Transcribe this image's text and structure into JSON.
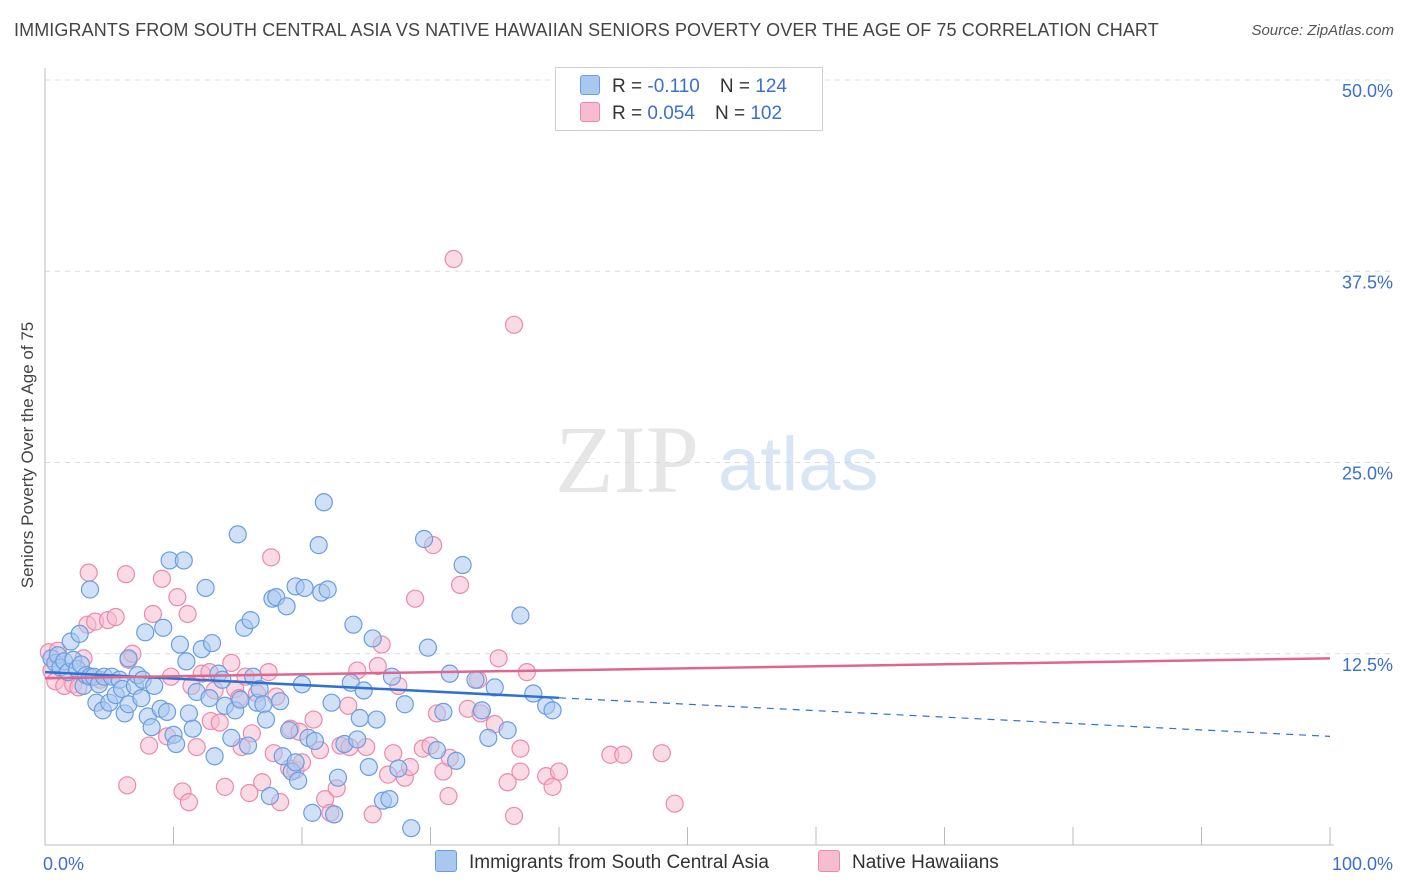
{
  "header": {
    "title": "IMMIGRANTS FROM SOUTH CENTRAL ASIA VS NATIVE HAWAIIAN SENIORS POVERTY OVER THE AGE OF 75 CORRELATION CHART",
    "source": "Source: ZipAtlas.com"
  },
  "watermark": {
    "zip": "ZIP",
    "atlas": "atlas"
  },
  "legend_top": {
    "rows": [
      {
        "r_label": "R =",
        "r_value": "-0.110",
        "n_label": "N =",
        "n_value": "124"
      },
      {
        "r_label": "R =",
        "r_value": "0.054",
        "n_label": "N =",
        "n_value": "102"
      }
    ]
  },
  "colors": {
    "blue_fill": "#a9c8f0",
    "blue_stroke": "#6a9de0",
    "blue_line": "#3070d0",
    "pink_fill": "#f6bcd0",
    "pink_stroke": "#eb8aab",
    "pink_line": "#e06590",
    "grid": "#dcdcdc",
    "axis_text": "#3a6fd0"
  },
  "chart_data": {
    "type": "scatter",
    "title": "IMMIGRANTS FROM SOUTH CENTRAL ASIA VS NATIVE HAWAIIAN SENIORS POVERTY OVER THE AGE OF 75 CORRELATION CHART",
    "xlabel": "",
    "ylabel": "Seniors Poverty Over the Age of 75",
    "xlim": [
      0,
      100
    ],
    "ylim": [
      0,
      50
    ],
    "x_tick_labels": [
      "0.0%",
      "100.0%"
    ],
    "y_ticks": [
      12.5,
      25.0,
      37.5,
      50.0
    ],
    "y_tick_labels": [
      "12.5%",
      "25.0%",
      "37.5%",
      "50.0%"
    ],
    "grid": true,
    "legend_position": "bottom",
    "series": [
      {
        "name": "Immigrants from South Central Asia",
        "r": -0.11,
        "n": 124,
        "trend": {
          "x0": 0,
          "y0": 11.3,
          "x1": 100,
          "y1": 7.1,
          "solid_until_x": 40
        },
        "points": [
          [
            0.5,
            12.2
          ],
          [
            0.8,
            11.9
          ],
          [
            1.0,
            12.4
          ],
          [
            1.2,
            11.6
          ],
          [
            1.5,
            12.0
          ],
          [
            1.8,
            11.3
          ],
          [
            2.0,
            13.3
          ],
          [
            2.2,
            12.1
          ],
          [
            2.5,
            11.5
          ],
          [
            2.8,
            11.8
          ],
          [
            3.0,
            10.4
          ],
          [
            3.2,
            11.1
          ],
          [
            2.7,
            13.8
          ],
          [
            3.5,
            11.0
          ],
          [
            3.5,
            16.7
          ],
          [
            3.8,
            11.0
          ],
          [
            4.0,
            9.3
          ],
          [
            4.2,
            10.5
          ],
          [
            4.5,
            8.8
          ],
          [
            4.6,
            11.0
          ],
          [
            5.0,
            9.3
          ],
          [
            5.2,
            11.0
          ],
          [
            5.5,
            9.8
          ],
          [
            5.8,
            10.8
          ],
          [
            6.0,
            10.2
          ],
          [
            6.2,
            8.6
          ],
          [
            6.5,
            9.2
          ],
          [
            6.5,
            12.2
          ],
          [
            7.0,
            10.4
          ],
          [
            7.2,
            11.1
          ],
          [
            7.5,
            9.6
          ],
          [
            7.6,
            10.8
          ],
          [
            7.8,
            13.9
          ],
          [
            8.0,
            8.4
          ],
          [
            8.3,
            7.7
          ],
          [
            8.5,
            10.4
          ],
          [
            9.0,
            8.9
          ],
          [
            9.2,
            14.2
          ],
          [
            9.5,
            8.7
          ],
          [
            9.7,
            18.6
          ],
          [
            10.0,
            7.2
          ],
          [
            10.2,
            6.6
          ],
          [
            10.5,
            13.1
          ],
          [
            10.8,
            18.6
          ],
          [
            11.0,
            12.0
          ],
          [
            11.2,
            8.6
          ],
          [
            11.5,
            7.6
          ],
          [
            11.8,
            10.0
          ],
          [
            12.2,
            12.8
          ],
          [
            12.5,
            16.8
          ],
          [
            12.8,
            9.6
          ],
          [
            13.0,
            13.2
          ],
          [
            13.2,
            5.8
          ],
          [
            13.5,
            11.2
          ],
          [
            13.8,
            10.8
          ],
          [
            14.0,
            9.1
          ],
          [
            14.5,
            7.0
          ],
          [
            14.8,
            8.8
          ],
          [
            15.0,
            20.3
          ],
          [
            15.2,
            9.5
          ],
          [
            15.5,
            14.2
          ],
          [
            15.8,
            6.5
          ],
          [
            16.0,
            14.7
          ],
          [
            16.2,
            11.0
          ],
          [
            16.5,
            9.3
          ],
          [
            16.7,
            10.2
          ],
          [
            17.0,
            9.2
          ],
          [
            17.2,
            8.2
          ],
          [
            17.5,
            3.2
          ],
          [
            17.7,
            16.1
          ],
          [
            18.0,
            16.2
          ],
          [
            18.3,
            9.4
          ],
          [
            18.5,
            5.8
          ],
          [
            18.8,
            15.6
          ],
          [
            19.0,
            7.5
          ],
          [
            19.2,
            4.8
          ],
          [
            19.5,
            5.4
          ],
          [
            19.5,
            16.9
          ],
          [
            19.7,
            4.2
          ],
          [
            20.0,
            10.5
          ],
          [
            20.2,
            16.8
          ],
          [
            20.5,
            7.0
          ],
          [
            20.8,
            2.1
          ],
          [
            21.0,
            6.8
          ],
          [
            21.3,
            19.6
          ],
          [
            21.5,
            16.5
          ],
          [
            21.7,
            22.4
          ],
          [
            22.0,
            16.7
          ],
          [
            22.3,
            9.3
          ],
          [
            22.5,
            2.0
          ],
          [
            22.8,
            4.4
          ],
          [
            23.3,
            6.6
          ],
          [
            23.8,
            10.6
          ],
          [
            24.0,
            14.4
          ],
          [
            24.3,
            6.9
          ],
          [
            24.5,
            8.3
          ],
          [
            24.8,
            10.1
          ],
          [
            25.2,
            5.1
          ],
          [
            25.5,
            13.5
          ],
          [
            25.8,
            8.2
          ],
          [
            26.3,
            2.9
          ],
          [
            26.8,
            3.0
          ],
          [
            27.0,
            11.0
          ],
          [
            27.5,
            5.0
          ],
          [
            28.0,
            9.2
          ],
          [
            28.5,
            1.1
          ],
          [
            29.5,
            20.0
          ],
          [
            29.8,
            12.9
          ],
          [
            30.5,
            6.2
          ],
          [
            31.0,
            8.7
          ],
          [
            31.5,
            11.2
          ],
          [
            32.0,
            5.5
          ],
          [
            32.5,
            18.3
          ],
          [
            33.5,
            10.8
          ],
          [
            34.0,
            8.8
          ],
          [
            34.5,
            7.0
          ],
          [
            35.0,
            10.3
          ],
          [
            36.0,
            7.5
          ],
          [
            37.0,
            15.0
          ],
          [
            38.0,
            9.9
          ],
          [
            39.0,
            9.1
          ],
          [
            39.5,
            8.8
          ]
        ]
      },
      {
        "name": "Native Hawaiians",
        "r": 0.054,
        "n": 102,
        "trend": {
          "x0": 0,
          "y0": 10.9,
          "x1": 100,
          "y1": 12.2,
          "solid_until_x": 100
        },
        "points": [
          [
            0.3,
            12.6
          ],
          [
            0.5,
            11.4
          ],
          [
            0.8,
            10.7
          ],
          [
            1.0,
            12.7
          ],
          [
            1.5,
            10.4
          ],
          [
            2.2,
            10.5
          ],
          [
            2.6,
            10.3
          ],
          [
            3.0,
            12.2
          ],
          [
            3.3,
            14.4
          ],
          [
            3.4,
            17.8
          ],
          [
            3.9,
            14.6
          ],
          [
            4.3,
            10.8
          ],
          [
            4.9,
            14.7
          ],
          [
            5.5,
            14.9
          ],
          [
            6.3,
            17.7
          ],
          [
            6.5,
            12.1
          ],
          [
            6.8,
            12.5
          ],
          [
            6.4,
            3.9
          ],
          [
            8.1,
            6.5
          ],
          [
            8.4,
            15.1
          ],
          [
            9.1,
            17.4
          ],
          [
            9.5,
            7.1
          ],
          [
            9.8,
            11.0
          ],
          [
            10.3,
            16.2
          ],
          [
            10.7,
            3.5
          ],
          [
            11.1,
            15.1
          ],
          [
            11.2,
            2.8
          ],
          [
            11.4,
            10.4
          ],
          [
            11.8,
            6.4
          ],
          [
            12.2,
            11.2
          ],
          [
            12.8,
            11.3
          ],
          [
            12.9,
            8.1
          ],
          [
            13.2,
            10.1
          ],
          [
            13.6,
            8.0
          ],
          [
            14.0,
            3.8
          ],
          [
            14.5,
            11.9
          ],
          [
            14.8,
            10.2
          ],
          [
            15.1,
            9.6
          ],
          [
            15.3,
            6.4
          ],
          [
            15.6,
            11.0
          ],
          [
            15.9,
            3.4
          ],
          [
            16.1,
            7.3
          ],
          [
            16.5,
            9.9
          ],
          [
            16.9,
            4.1
          ],
          [
            17.4,
            11.3
          ],
          [
            17.6,
            18.8
          ],
          [
            17.8,
            6.0
          ],
          [
            18.0,
            9.7
          ],
          [
            18.3,
            2.8
          ],
          [
            19.0,
            5.0
          ],
          [
            19.1,
            7.6
          ],
          [
            19.5,
            4.9
          ],
          [
            19.8,
            7.4
          ],
          [
            20.0,
            5.4
          ],
          [
            20.9,
            8.2
          ],
          [
            21.4,
            6.2
          ],
          [
            21.8,
            3.0
          ],
          [
            22.2,
            2.1
          ],
          [
            22.7,
            3.7
          ],
          [
            23.0,
            6.5
          ],
          [
            23.6,
            9.1
          ],
          [
            23.7,
            6.4
          ],
          [
            24.3,
            11.4
          ],
          [
            25.0,
            6.4
          ],
          [
            25.5,
            2.0
          ],
          [
            25.9,
            11.7
          ],
          [
            26.2,
            13.1
          ],
          [
            26.7,
            4.6
          ],
          [
            27.1,
            6.0
          ],
          [
            27.5,
            10.4
          ],
          [
            28.0,
            4.4
          ],
          [
            28.4,
            5.1
          ],
          [
            28.8,
            16.1
          ],
          [
            29.4,
            6.3
          ],
          [
            30.0,
            6.5
          ],
          [
            30.2,
            19.6
          ],
          [
            30.5,
            8.6
          ],
          [
            31.0,
            4.8
          ],
          [
            31.5,
            5.7
          ],
          [
            31.8,
            38.3
          ],
          [
            31.4,
            3.2
          ],
          [
            32.3,
            17.0
          ],
          [
            32.9,
            8.9
          ],
          [
            33.7,
            10.8
          ],
          [
            33.9,
            8.6
          ],
          [
            35.0,
            7.9
          ],
          [
            35.3,
            12.2
          ],
          [
            36.0,
            4.1
          ],
          [
            36.5,
            1.9
          ],
          [
            37.0,
            6.3
          ],
          [
            36.5,
            34.0
          ],
          [
            37.0,
            4.8
          ],
          [
            37.5,
            11.3
          ],
          [
            39.0,
            4.5
          ],
          [
            39.5,
            3.8
          ],
          [
            40.0,
            4.8
          ],
          [
            44.0,
            5.9
          ],
          [
            45.0,
            5.9
          ],
          [
            48.0,
            6.0
          ],
          [
            49.0,
            2.7
          ]
        ]
      }
    ]
  },
  "legend_bottom": {
    "items": [
      {
        "label": "Immigrants from South Central Asia"
      },
      {
        "label": "Native Hawaiians"
      }
    ]
  }
}
